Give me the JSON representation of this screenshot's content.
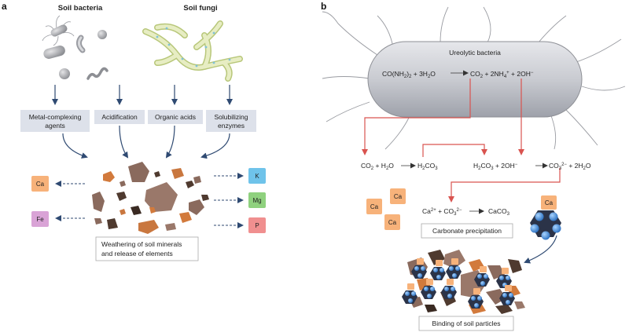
{
  "panel_a": {
    "label": "a",
    "bacteria_heading": "Soil bacteria",
    "fungi_heading": "Soil fungi",
    "mechanisms": [
      {
        "line1": "Metal-complexing",
        "line2": "agents"
      },
      {
        "line1": "Acidification",
        "line2": ""
      },
      {
        "line1": "Organic acids",
        "line2": ""
      },
      {
        "line1": "Solubilizing",
        "line2": "enzymes"
      }
    ],
    "elements_left": [
      {
        "symbol": "Ca",
        "color": "#f7b27a"
      },
      {
        "symbol": "Fe",
        "color": "#d9a3d6"
      }
    ],
    "elements_right": [
      {
        "symbol": "K",
        "color": "#6fc3ea"
      },
      {
        "symbol": "Mg",
        "color": "#8fd17e"
      },
      {
        "symbol": "P",
        "color": "#f08f8f"
      }
    ],
    "weathering_line1": "Weathering of soil minerals",
    "weathering_line2": "and release of elements"
  },
  "panel_b": {
    "label": "b",
    "cell_title": "Ureolytic bacteria",
    "urea_reaction": {
      "co": "CO(NH",
      "n3": "2",
      "c1": ")",
      "n3b": "2",
      "plus_h2o": " + 3H",
      "h2o_sub": "2",
      "o": "O",
      "co2": "CO",
      "co2_sub": "2",
      "nh4": "+ 2NH",
      "nh4_sub": "4",
      "nh4_sup": "+",
      "oh": "+ 2OH",
      "oh_sup": "−"
    },
    "step1": {
      "co2": "CO",
      "co2_sub": "2",
      "plus": "+ H",
      "h2o_sub": "2",
      "o": "O",
      "h2co3": "H",
      "h2co3_sub1": "2",
      "co3": "CO",
      "co3_sub": "3"
    },
    "step2": {
      "h2co3": "H",
      "h2co3_sub1": "2",
      "co3": "CO",
      "co3_sub": "3",
      "plus": "+ 2OH",
      "oh_sup": "−",
      "carb": "CO",
      "carb_sub": "3",
      "carb_sup": "2−",
      "water": "+ 2H",
      "water_sub": "2",
      "o": "O"
    },
    "precip": {
      "ca": "Ca",
      "ca_sup": "2+",
      "plus": " + CO",
      "co3_sub": "3",
      "co3_sup": "2−",
      "caco3": "CaCO",
      "caco3_sub": "3"
    },
    "ca_ions": [
      "Ca",
      "Ca",
      "Ca"
    ],
    "crystal_label": "Ca",
    "carbonate_precipitation": "Carbonate precipitation",
    "binding": "Binding of soil particles",
    "ca_color": "#f7b27a",
    "arrow_red": "#d9534f",
    "arrow_navy": "#2f4a72"
  }
}
